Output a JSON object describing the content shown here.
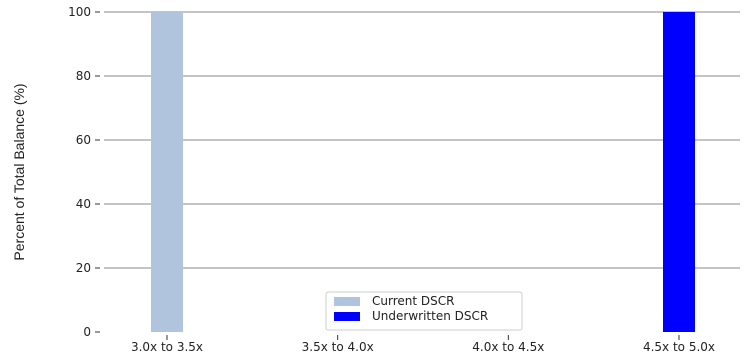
{
  "chart_data": {
    "type": "bar",
    "title": "",
    "xlabel": "",
    "ylabel": "Percent of Total Balance (%)",
    "categories": [
      "3.0x to 3.5x",
      "3.5x to 4.0x",
      "4.0x to 4.5x",
      "4.5x to 5.0x"
    ],
    "series": [
      {
        "name": "Current DSCR",
        "color": "#b0c4de",
        "values": [
          100,
          0,
          0,
          0
        ]
      },
      {
        "name": "Underwritten DSCR",
        "color": "#0000ff",
        "values": [
          0,
          0,
          0,
          100
        ]
      }
    ],
    "ylim": [
      0,
      100
    ],
    "yticks": [
      0,
      20,
      40,
      60,
      80,
      100
    ],
    "grid": true,
    "legend_position": "bottom-center"
  }
}
